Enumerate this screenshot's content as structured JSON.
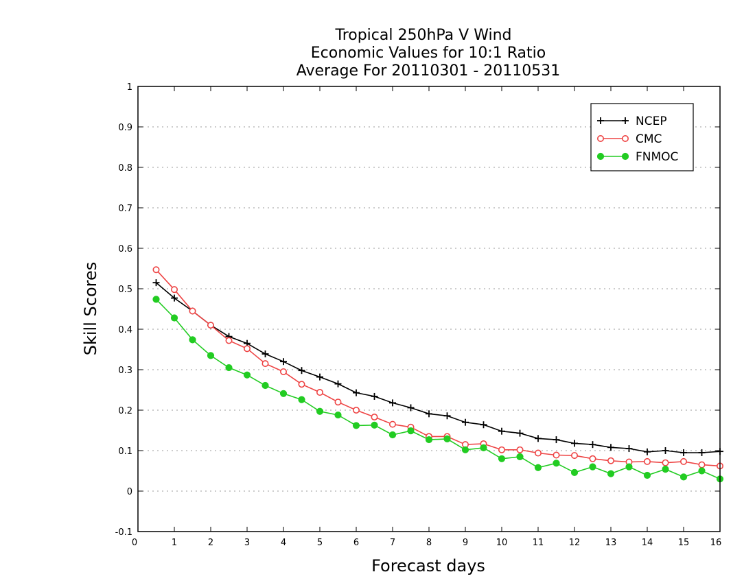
{
  "chart_data": {
    "type": "line",
    "title": [
      "Tropical 250hPa V Wind",
      "Economic Values for 10:1 Ratio",
      "Average For 20110301 - 20110531"
    ],
    "xlabel": "Forecast days",
    "ylabel": "Skill Scores",
    "xlim": [
      0,
      16
    ],
    "ylim": [
      -0.1,
      1
    ],
    "x_ticks": [
      0,
      1,
      2,
      3,
      4,
      5,
      6,
      7,
      8,
      9,
      10,
      11,
      12,
      13,
      14,
      15,
      16
    ],
    "y_ticks": [
      -0.1,
      0,
      0.1,
      0.2,
      0.3,
      0.4,
      0.5,
      0.6,
      0.7,
      0.8,
      0.9,
      1
    ],
    "y_tick_labels": [
      "-0.1",
      "0",
      "0.1",
      "0.2",
      "0.3",
      "0.4",
      "0.5",
      "0.6",
      "0.7",
      "0.8",
      "0.9",
      "1"
    ],
    "grid": "horizontal dotted",
    "legend_position": "top-right",
    "x": [
      0.5,
      1,
      1.5,
      2,
      2.5,
      3,
      3.5,
      4,
      4.5,
      5,
      5.5,
      6,
      6.5,
      7,
      7.5,
      8,
      8.5,
      9,
      9.5,
      10,
      10.5,
      11,
      11.5,
      12,
      12.5,
      13,
      13.5,
      14,
      14.5,
      15,
      15.5,
      16
    ],
    "series": [
      {
        "name": "NCEP",
        "color": "#000000",
        "marker": "plus",
        "values": [
          0.515,
          0.477,
          0.445,
          0.41,
          0.382,
          0.365,
          0.339,
          0.32,
          0.298,
          0.282,
          0.265,
          0.243,
          0.234,
          0.218,
          0.206,
          0.191,
          0.186,
          0.17,
          0.164,
          0.148,
          0.143,
          0.13,
          0.127,
          0.118,
          0.115,
          0.108,
          0.105,
          0.097,
          0.1,
          0.095,
          0.095,
          0.098
        ]
      },
      {
        "name": "CMC",
        "color": "#ee4444",
        "marker": "open-circle",
        "values": [
          0.547,
          0.498,
          0.445,
          0.41,
          0.372,
          0.352,
          0.315,
          0.295,
          0.264,
          0.244,
          0.22,
          0.2,
          0.183,
          0.165,
          0.158,
          0.135,
          0.135,
          0.115,
          0.117,
          0.102,
          0.102,
          0.094,
          0.089,
          0.088,
          0.08,
          0.075,
          0.072,
          0.073,
          0.07,
          0.073,
          0.065,
          0.062
        ]
      },
      {
        "name": "FNMOC",
        "color": "#22cc22",
        "marker": "filled-circle",
        "values": [
          0.474,
          0.428,
          0.374,
          0.335,
          0.305,
          0.287,
          0.261,
          0.241,
          0.226,
          0.197,
          0.188,
          0.162,
          0.163,
          0.139,
          0.149,
          0.127,
          0.129,
          0.102,
          0.107,
          0.08,
          0.085,
          0.058,
          0.069,
          0.046,
          0.06,
          0.043,
          0.06,
          0.039,
          0.054,
          0.035,
          0.05,
          0.03
        ]
      }
    ]
  }
}
